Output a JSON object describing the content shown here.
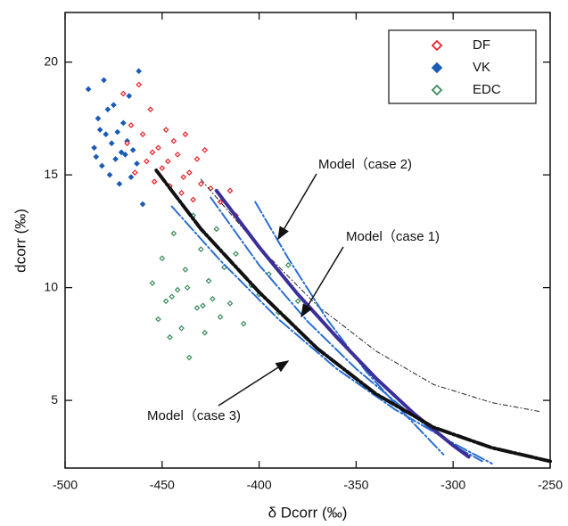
{
  "chart_data": {
    "type": "scatter",
    "x_label": "δ Dcorr (‰)",
    "y_label": "dcorr (‰)",
    "xlim": [
      -500,
      -250
    ],
    "xticks": [
      -500,
      -450,
      -400,
      -350,
      -300,
      -250
    ],
    "ylim": [
      2,
      22.2
    ],
    "yticks": [
      5,
      10,
      15,
      20
    ],
    "legend": "upper right",
    "series": [
      {
        "name": "VK",
        "color": "#1a5bb5",
        "marker": "filled",
        "x": [
          -488,
          -485,
          -483,
          -481,
          -480,
          -479,
          -478,
          -477,
          -476,
          -475,
          -474,
          -473,
          -472,
          -470,
          -469,
          -468,
          -467,
          -466,
          -465,
          -463,
          -462,
          -460,
          -484,
          -482,
          -471
        ],
        "values": [
          18.8,
          16.2,
          17.5,
          15.4,
          19.2,
          16.8,
          17.9,
          15.0,
          16.4,
          18.1,
          15.7,
          16.9,
          14.6,
          17.3,
          15.9,
          16.5,
          18.5,
          14.9,
          16.1,
          15.5,
          19.6,
          13.7,
          15.8,
          17.0,
          16.0
        ]
      },
      {
        "name": "DF",
        "color": "#e8202a",
        "marker": "open",
        "x": [
          -470,
          -468,
          -466,
          -464,
          -462,
          -460,
          -458,
          -456,
          -454,
          -452,
          -450,
          -448,
          -446,
          -444,
          -442,
          -440,
          -438,
          -436,
          -434,
          -432,
          -430,
          -428,
          -425,
          -420,
          -415,
          -412,
          -455,
          -447,
          -439
        ],
        "values": [
          18.6,
          16.4,
          17.2,
          15.1,
          19.0,
          16.8,
          15.6,
          17.9,
          14.7,
          16.2,
          15.3,
          17.0,
          14.5,
          16.5,
          15.9,
          14.2,
          16.8,
          15.1,
          13.9,
          15.7,
          14.6,
          16.1,
          14.4,
          13.8,
          14.3,
          13.2,
          16.0,
          15.6,
          14.9
        ]
      },
      {
        "name": "EDC",
        "color": "#3a8a5a",
        "marker": "open",
        "x": [
          -455,
          -452,
          -450,
          -448,
          -446,
          -444,
          -442,
          -440,
          -438,
          -436,
          -434,
          -432,
          -430,
          -428,
          -426,
          -424,
          -422,
          -420,
          -418,
          -415,
          -412,
          -408,
          -404,
          -400,
          -395,
          -390,
          -385,
          -380,
          -445,
          -437,
          -429
        ],
        "values": [
          10.2,
          8.6,
          11.3,
          9.4,
          7.8,
          12.4,
          9.9,
          8.2,
          10.8,
          6.9,
          13.2,
          9.1,
          11.7,
          8.0,
          10.3,
          9.5,
          12.6,
          8.7,
          10.9,
          9.3,
          11.5,
          8.4,
          10.1,
          9.7,
          10.6,
          8.9,
          11.0,
          9.4,
          9.6,
          10.0,
          9.2
        ]
      }
    ],
    "curves": [
      {
        "color": "#222222",
        "width": 1,
        "dash": "5 3 1 3",
        "x": [
          -430,
          -400,
          -370,
          -340,
          -310,
          -280,
          -255
        ],
        "values": [
          14.8,
          11.8,
          9.2,
          7.2,
          5.7,
          4.9,
          4.5
        ]
      },
      {
        "color": "#2a6fd0",
        "width": 2,
        "dash": "14 3 2 3",
        "x": [
          -402,
          -385,
          -365,
          -345,
          -325,
          -305
        ],
        "values": [
          13.8,
          11.3,
          8.6,
          6.3,
          4.4,
          2.6
        ]
      },
      {
        "color": "#2a6fd0",
        "width": 2,
        "dash": "14 3 2 3",
        "x": [
          -425,
          -400,
          -375,
          -350,
          -325,
          -300,
          -285
        ],
        "values": [
          14.0,
          11.0,
          8.5,
          6.4,
          4.6,
          3.0,
          2.3
        ]
      },
      {
        "color": "#2a6fd0",
        "width": 2,
        "dash": "14 3 2 3",
        "x": [
          -445,
          -420,
          -390,
          -360,
          -330,
          -300,
          -280
        ],
        "values": [
          13.6,
          11.2,
          8.6,
          6.4,
          4.6,
          3.1,
          2.2
        ]
      },
      {
        "color": "#3b2f9a",
        "width": 4,
        "dash": "none",
        "x": [
          -422,
          -400,
          -380,
          -360,
          -340,
          -320,
          -300,
          -292
        ],
        "values": [
          14.3,
          11.8,
          9.7,
          7.8,
          6.0,
          4.4,
          3.0,
          2.5
        ]
      },
      {
        "color": "#111111",
        "width": 4,
        "dash": "16 3 2 3",
        "x": [
          -453,
          -430,
          -400,
          -370,
          -340,
          -310,
          -280,
          -250
        ],
        "values": [
          15.2,
          12.6,
          9.8,
          7.3,
          5.3,
          3.8,
          2.9,
          2.3
        ]
      }
    ],
    "annotations": [
      "Model（case 2)",
      "Model（case 1)",
      "Model（case 3)"
    ]
  }
}
